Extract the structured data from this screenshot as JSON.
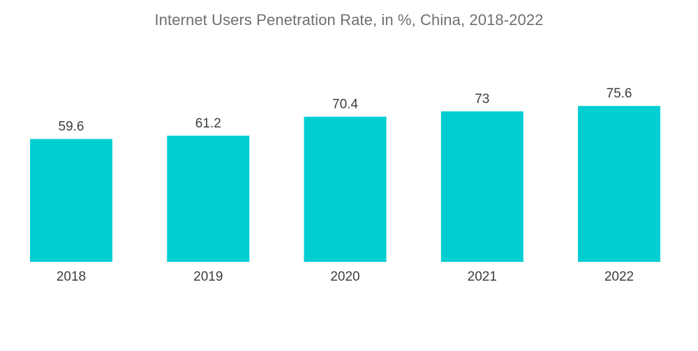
{
  "chart_data": {
    "type": "bar",
    "title": "Internet Users Penetration Rate, in %, China, 2018-2022",
    "categories": [
      "2018",
      "2019",
      "2020",
      "2021",
      "2022"
    ],
    "values": [
      59.6,
      61.2,
      70.4,
      73,
      75.6
    ],
    "value_labels": [
      "59.6",
      "61.2",
      "70.4",
      "73",
      "75.6"
    ],
    "xlabel": "",
    "ylabel": "",
    "ylim": [
      0,
      100
    ],
    "grid": false,
    "bar_color": "#00CED1"
  }
}
